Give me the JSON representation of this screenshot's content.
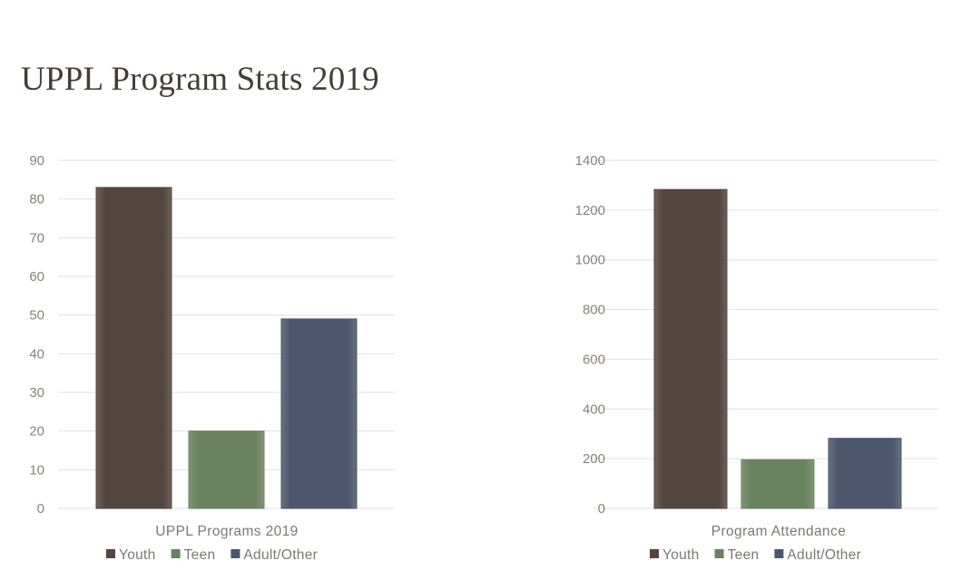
{
  "page": {
    "title": "UPPL Program Stats 2019"
  },
  "chart_data": [
    {
      "type": "bar",
      "categories": [
        "UPPL Programs 2019"
      ],
      "series": [
        {
          "name": "Youth",
          "values": [
            83
          ],
          "color": "#54453e"
        },
        {
          "name": "Teen",
          "values": [
            20
          ],
          "color": "#6a835f"
        },
        {
          "name": "Adult/Other",
          "values": [
            49
          ],
          "color": "#4b576c"
        }
      ],
      "xlabel": "UPPL Programs 2019",
      "ylim": [
        0,
        90
      ],
      "yticks": [
        0,
        10,
        20,
        30,
        40,
        50,
        60,
        70,
        80,
        90
      ],
      "grid": true,
      "legend": "bottom"
    },
    {
      "type": "bar",
      "categories": [
        "Program Attendance"
      ],
      "series": [
        {
          "name": "Youth",
          "values": [
            1283
          ],
          "color": "#54453e"
        },
        {
          "name": "Teen",
          "values": [
            196
          ],
          "color": "#6a835f"
        },
        {
          "name": "Adult/Other",
          "values": [
            282
          ],
          "color": "#4b576c"
        }
      ],
      "xlabel": "Program Attendance",
      "ylim": [
        0,
        1400
      ],
      "yticks": [
        0,
        200,
        400,
        600,
        800,
        1000,
        1200,
        1400
      ],
      "grid": true,
      "legend": "bottom"
    }
  ]
}
